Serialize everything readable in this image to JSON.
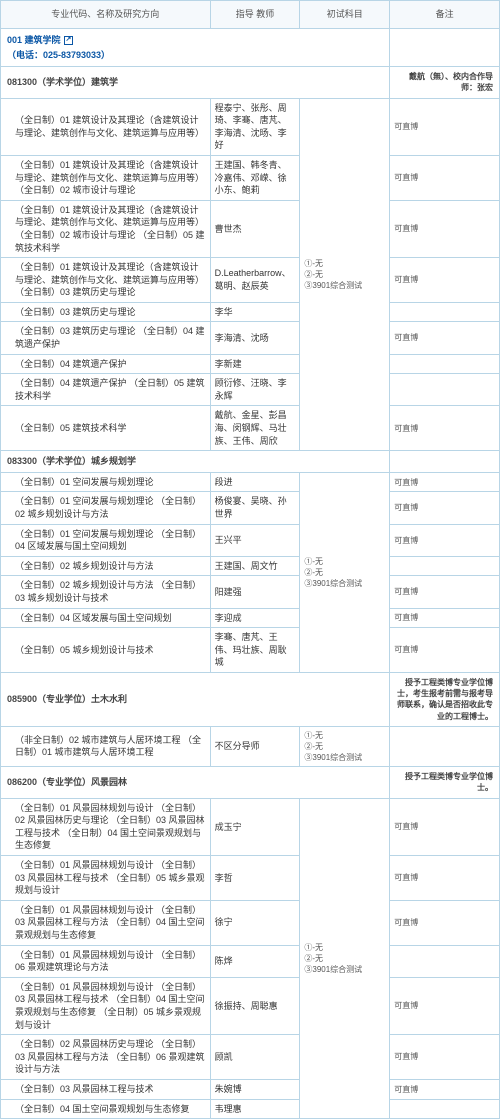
{
  "headers": {
    "major": "专业代码、名称及研究方向",
    "teacher": "指导\n教师",
    "subject": "初试科目",
    "remark": "备注"
  },
  "dept": {
    "name": "001 建筑学院",
    "phone": "（电话：025-83793033）"
  },
  "sections": [
    {
      "code": "081300（学术学位）建筑学",
      "remark_top": "戴航（無）、校内合作导师：张宏",
      "subject": "①-无\n②-无\n③3901综合测试",
      "rows": [
        {
          "dir": "（全日制）01 建筑设计及其理论（含建筑设计与理论、建筑创作与文化、建筑运算与应用等）",
          "teacher": "程泰宁、张彤、周琦、李骞、唐芃、李海清、沈旸、李好",
          "remark": "可直博"
        },
        {
          "dir": "（全日制）01 建筑设计及其理论（含建筑设计与理论、建筑创作与文化、建筑运算与应用等）\n（全日制）02 城市设计与理论",
          "teacher": "王建国、韩冬青、冷嘉伟、邓嵘、徐小东、鲍莉",
          "remark": "可直博"
        },
        {
          "dir": "（全日制）01 建筑设计及其理论（含建筑设计与理论、建筑创作与文化、建筑运算与应用等）\n（全日制）02 城市设计与理论\n（全日制）05 建筑技术科学",
          "teacher": "曹世杰",
          "remark": "可直博"
        },
        {
          "dir": "（全日制）01 建筑设计及其理论（含建筑设计与理论、建筑创作与文化、建筑运算与应用等）\n（全日制）03 建筑历史与理论",
          "teacher": "D.Leatherbarrow、葛明、赵辰英",
          "remark": "可直博"
        },
        {
          "dir": "（全日制）03 建筑历史与理论",
          "teacher": "李华",
          "remark": ""
        },
        {
          "dir": "（全日制）03 建筑历史与理论\n（全日制）04 建筑遗产保护",
          "teacher": "李海清、沈旸",
          "remark": "可直博"
        },
        {
          "dir": "（全日制）04 建筑遗产保护",
          "teacher": "李新建",
          "remark": ""
        },
        {
          "dir": "（全日制）04 建筑遗产保护\n（全日制）05 建筑技术科学",
          "teacher": "顾衍修、汪晓、李永辉",
          "remark": ""
        },
        {
          "dir": "（全日制）05 建筑技术科学",
          "teacher": "戴航、金星、彭昌海、闵钢辉、马壮族、王伟、周欣",
          "remark": "可直博"
        }
      ]
    },
    {
      "code": "083300（学术学位）城乡规划学",
      "remark_top": "",
      "subject": "①-无\n②-无\n③3901综合测试",
      "rows": [
        {
          "dir": "（全日制）01 空间发展与规划理论",
          "teacher": "段进",
          "remark": "可直博"
        },
        {
          "dir": "（全日制）01 空间发展与规划理论\n（全日制）02 城乡规划设计与方法",
          "teacher": "杨俊宴、吴晓、孙世界",
          "remark": "可直博"
        },
        {
          "dir": "（全日制）01 空间发展与规划理论\n（全日制）04 区域发展与国土空间规划",
          "teacher": "王兴平",
          "remark": "可直博"
        },
        {
          "dir": "（全日制）02 城乡规划设计与方法",
          "teacher": "王建国、周文竹",
          "remark": ""
        },
        {
          "dir": "（全日制）02 城乡规划设计与方法\n（全日制）03 城乡规划设计与技术",
          "teacher": "阳建强",
          "remark": "可直博"
        },
        {
          "dir": "（全日制）04 区域发展与国土空间规划",
          "teacher": "李迎成",
          "remark": "可直博"
        },
        {
          "dir": "（全日制）05 城乡规划设计与技术",
          "teacher": "李骞、唐芃、王伟、玛壮族、周耿城",
          "remark": "可直博"
        }
      ]
    },
    {
      "code": "085900（专业学位）土木水利",
      "remark_top": "授予工程类博专业学位博士，考生报考前需与报考导师联系，确认是否招收此专业的工程博士。",
      "subject": "①-无\n②-无\n③3901综合测试",
      "rows": [
        {
          "dir": "（非全日制）02 城市建筑与人居环境工程\n（全日制）01 城市建筑与人居环境工程",
          "teacher": "不区分导师",
          "remark": ""
        }
      ]
    },
    {
      "code": "086200（专业学位）风景园林",
      "remark_top": "授予工程类博专业学位博士。",
      "subject": "①-无\n②-无\n③3901综合测试",
      "rows": [
        {
          "dir": "（全日制）01 风景园林规划与设计\n（全日制）02 风景园林历史与理论\n（全日制）03 风景园林工程与技术\n（全日制）04 国土空间景观规划与生态修复",
          "teacher": "成玉宁",
          "remark": "可直博"
        },
        {
          "dir": "（全日制）01 风景园林规划与设计\n（全日制）03 风景园林工程与技术\n（全日制）05 城乡景观规划与设计",
          "teacher": "李哲",
          "remark": "可直博"
        },
        {
          "dir": "（全日制）01 风景园林规划与设计\n（全日制）03 风景园林工程与方法\n（全日制）04 国土空间景观规划与生态修复",
          "teacher": "徐宁",
          "remark": "可直博"
        },
        {
          "dir": "（全日制）01 风景园林规划与设计\n（全日制）06 景观建筑理论与方法",
          "teacher": "陈烨",
          "remark": ""
        },
        {
          "dir": "（全日制）01 风景园林规划与设计\n（全日制）03 风景园林工程与技术\n（全日制）04 国土空间景观规划与生态修复\n（全日制）05 城乡景观规划与设计",
          "teacher": "徐振持、周聪惠",
          "remark": "可直博"
        },
        {
          "dir": "（全日制）02 风景园林历史与理论\n（全日制）03 风景园林工程与方法\n（全日制）06 景观建筑设计与方法",
          "teacher": "顾凯",
          "remark": "可直博"
        },
        {
          "dir": "（全日制）03 风景园林工程与技术",
          "teacher": "朱婉博",
          "remark": "可直博"
        },
        {
          "dir": "（全日制）04 国土空间景观规划与生态修复",
          "teacher": "韦理惠",
          "remark": ""
        }
      ]
    }
  ]
}
